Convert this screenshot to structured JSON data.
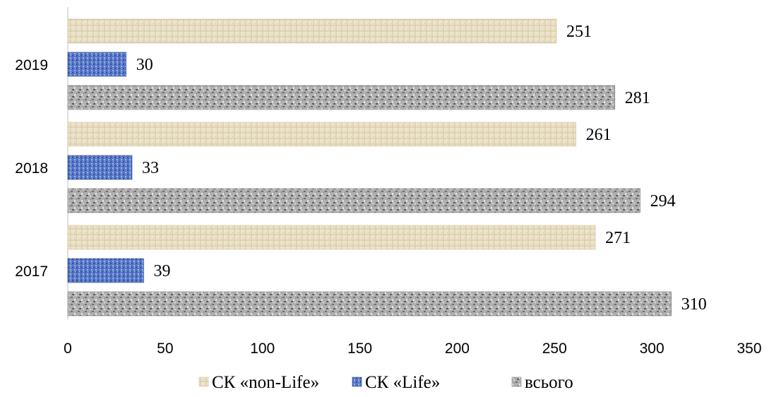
{
  "chart_data": {
    "type": "bar",
    "orientation": "horizontal",
    "title": "",
    "xlabel": "",
    "ylabel": "",
    "categories": [
      "2019",
      "2018",
      "2017"
    ],
    "series": [
      {
        "name": "СК «non-Life»",
        "values": [
          251,
          261,
          271
        ],
        "color": "#e9dfc4",
        "stroke": "#d2c4a0"
      },
      {
        "name": "СК «Life»",
        "values": [
          30,
          33,
          39
        ],
        "color": "#4f72c4",
        "stroke": "#2c4f9a"
      },
      {
        "name": "всього",
        "values": [
          281,
          294,
          310
        ],
        "color": "#a3a3a3",
        "stroke": "#7d7d7d"
      }
    ],
    "xlim": [
      0,
      350
    ],
    "xticks": [
      "0",
      "50",
      "100",
      "150",
      "200",
      "250",
      "300",
      "350"
    ],
    "grid": false,
    "data_labels": true,
    "legend_position": "bottom"
  }
}
